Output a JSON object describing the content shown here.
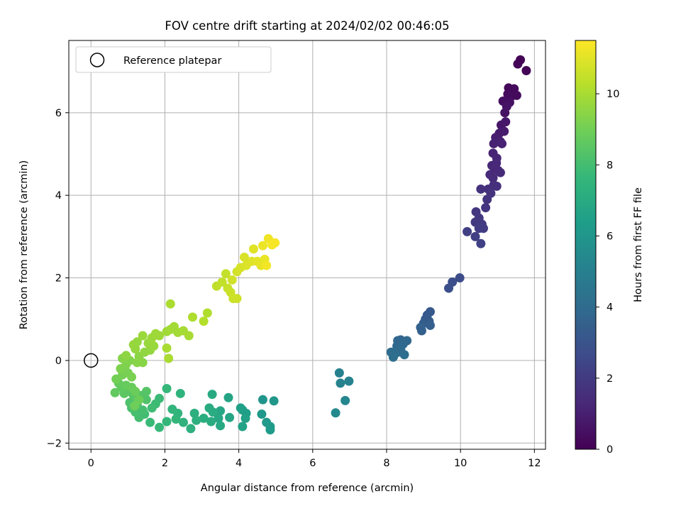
{
  "chart_data": {
    "type": "scatter",
    "title": "FOV centre drift starting at 2024/02/02 00:46:05",
    "xlabel": "Angular distance from reference (arcmin)",
    "ylabel": "Rotation from reference (arcmin)",
    "xlim": [
      -0.6,
      12.3
    ],
    "ylim": [
      -2.15,
      7.75
    ],
    "xticks": [
      0,
      2,
      4,
      6,
      8,
      10,
      12
    ],
    "yticks": [
      -2,
      0,
      2,
      4,
      6
    ],
    "xtick_labels": [
      "0",
      "2",
      "4",
      "6",
      "8",
      "10",
      "12"
    ],
    "ytick_labels": [
      "−2",
      "0",
      "2",
      "4",
      "6"
    ],
    "grid": true,
    "legend": {
      "placement": "top-left",
      "entries": [
        {
          "label": "Reference platepar",
          "marker": "open-circle"
        }
      ]
    },
    "reference_point": {
      "x": 0,
      "y": 0
    },
    "colorbar": {
      "label": "Hours from first FF file",
      "colormap": "viridis",
      "range": [
        0,
        11.5
      ],
      "ticks": [
        0,
        2,
        4,
        6,
        8,
        10
      ],
      "tick_labels": [
        "0",
        "2",
        "4",
        "6",
        "8",
        "10"
      ]
    },
    "colormap_stops": [
      "#440154",
      "#482878",
      "#3e4989",
      "#31688e",
      "#26828e",
      "#1f9e89",
      "#35b779",
      "#6ece58",
      "#b5de2b",
      "#fde725"
    ],
    "points": [
      {
        "x": 11.62,
        "y": 7.28,
        "t": 0.05
      },
      {
        "x": 11.55,
        "y": 7.18,
        "t": 0.1
      },
      {
        "x": 11.78,
        "y": 7.02,
        "t": 0.12
      },
      {
        "x": 11.3,
        "y": 6.6,
        "t": 0.2
      },
      {
        "x": 11.45,
        "y": 6.58,
        "t": 0.25
      },
      {
        "x": 11.28,
        "y": 6.45,
        "t": 0.3
      },
      {
        "x": 11.38,
        "y": 6.4,
        "t": 0.35
      },
      {
        "x": 11.52,
        "y": 6.42,
        "t": 0.3
      },
      {
        "x": 11.15,
        "y": 6.28,
        "t": 0.45
      },
      {
        "x": 11.33,
        "y": 6.25,
        "t": 0.5
      },
      {
        "x": 11.2,
        "y": 6.0,
        "t": 0.55
      },
      {
        "x": 11.25,
        "y": 6.15,
        "t": 0.6
      },
      {
        "x": 11.1,
        "y": 5.7,
        "t": 0.7
      },
      {
        "x": 11.22,
        "y": 5.78,
        "t": 0.75
      },
      {
        "x": 11.05,
        "y": 5.5,
        "t": 0.85
      },
      {
        "x": 11.18,
        "y": 5.55,
        "t": 0.9
      },
      {
        "x": 10.95,
        "y": 5.4,
        "t": 0.95
      },
      {
        "x": 11.08,
        "y": 5.3,
        "t": 1.0
      },
      {
        "x": 10.9,
        "y": 5.25,
        "t": 1.05
      },
      {
        "x": 11.12,
        "y": 5.25,
        "t": 1.1
      },
      {
        "x": 10.88,
        "y": 5.02,
        "t": 1.15
      },
      {
        "x": 10.98,
        "y": 4.9,
        "t": 1.2
      },
      {
        "x": 10.85,
        "y": 4.72,
        "t": 1.25
      },
      {
        "x": 10.92,
        "y": 4.65,
        "t": 1.3
      },
      {
        "x": 11.02,
        "y": 4.6,
        "t": 1.32
      },
      {
        "x": 10.8,
        "y": 4.5,
        "t": 1.35
      },
      {
        "x": 10.97,
        "y": 4.78,
        "t": 1.28
      },
      {
        "x": 11.08,
        "y": 4.55,
        "t": 1.4
      },
      {
        "x": 10.88,
        "y": 4.42,
        "t": 1.45
      },
      {
        "x": 10.9,
        "y": 4.25,
        "t": 1.5
      },
      {
        "x": 10.98,
        "y": 4.22,
        "t": 1.55
      },
      {
        "x": 10.75,
        "y": 4.15,
        "t": 1.6
      },
      {
        "x": 10.55,
        "y": 4.15,
        "t": 1.65
      },
      {
        "x": 10.82,
        "y": 4.05,
        "t": 1.7
      },
      {
        "x": 10.72,
        "y": 3.9,
        "t": 1.75
      },
      {
        "x": 10.68,
        "y": 3.7,
        "t": 1.8
      },
      {
        "x": 10.42,
        "y": 3.6,
        "t": 1.85
      },
      {
        "x": 10.5,
        "y": 3.45,
        "t": 1.9
      },
      {
        "x": 10.4,
        "y": 3.35,
        "t": 1.95
      },
      {
        "x": 10.58,
        "y": 3.3,
        "t": 2.0
      },
      {
        "x": 10.62,
        "y": 3.2,
        "t": 2.05
      },
      {
        "x": 10.5,
        "y": 3.2,
        "t": 2.1
      },
      {
        "x": 10.18,
        "y": 3.12,
        "t": 2.15
      },
      {
        "x": 10.4,
        "y": 3.0,
        "t": 2.2
      },
      {
        "x": 10.55,
        "y": 2.83,
        "t": 2.25
      },
      {
        "x": 9.98,
        "y": 2.0,
        "t": 2.7
      },
      {
        "x": 9.78,
        "y": 1.9,
        "t": 2.8
      },
      {
        "x": 9.68,
        "y": 1.75,
        "t": 2.85
      },
      {
        "x": 9.18,
        "y": 1.18,
        "t": 3.2
      },
      {
        "x": 9.1,
        "y": 1.1,
        "t": 3.25
      },
      {
        "x": 9.05,
        "y": 1.0,
        "t": 3.3
      },
      {
        "x": 9.15,
        "y": 0.95,
        "t": 3.35
      },
      {
        "x": 9.0,
        "y": 0.9,
        "t": 3.4
      },
      {
        "x": 9.18,
        "y": 0.85,
        "t": 3.45
      },
      {
        "x": 8.95,
        "y": 0.72,
        "t": 3.5
      },
      {
        "x": 8.92,
        "y": 0.8,
        "t": 3.55
      },
      {
        "x": 8.38,
        "y": 0.5,
        "t": 3.75
      },
      {
        "x": 8.3,
        "y": 0.48,
        "t": 3.8
      },
      {
        "x": 8.55,
        "y": 0.48,
        "t": 3.82
      },
      {
        "x": 8.45,
        "y": 0.4,
        "t": 3.85
      },
      {
        "x": 8.28,
        "y": 0.35,
        "t": 3.9
      },
      {
        "x": 8.38,
        "y": 0.28,
        "t": 3.95
      },
      {
        "x": 8.3,
        "y": 0.2,
        "t": 4.0
      },
      {
        "x": 8.12,
        "y": 0.2,
        "t": 4.05
      },
      {
        "x": 8.22,
        "y": 0.15,
        "t": 4.1
      },
      {
        "x": 8.48,
        "y": 0.14,
        "t": 4.15
      },
      {
        "x": 8.18,
        "y": 0.08,
        "t": 4.2
      },
      {
        "x": 6.72,
        "y": -0.3,
        "t": 5.0
      },
      {
        "x": 6.98,
        "y": -0.5,
        "t": 5.1
      },
      {
        "x": 6.75,
        "y": -0.55,
        "t": 5.15
      },
      {
        "x": 6.88,
        "y": -0.97,
        "t": 5.3
      },
      {
        "x": 6.62,
        "y": -1.27,
        "t": 5.45
      },
      {
        "x": 4.65,
        "y": -0.95,
        "t": 6.0
      },
      {
        "x": 4.95,
        "y": -0.98,
        "t": 6.05
      },
      {
        "x": 4.62,
        "y": -1.3,
        "t": 6.15
      },
      {
        "x": 4.75,
        "y": -1.5,
        "t": 6.2
      },
      {
        "x": 4.85,
        "y": -1.6,
        "t": 6.25
      },
      {
        "x": 4.85,
        "y": -1.68,
        "t": 6.3
      },
      {
        "x": 4.1,
        "y": -1.2,
        "t": 6.4
      },
      {
        "x": 4.2,
        "y": -1.28,
        "t": 6.45
      },
      {
        "x": 4.05,
        "y": -1.15,
        "t": 6.5
      },
      {
        "x": 4.18,
        "y": -1.4,
        "t": 6.55
      },
      {
        "x": 4.1,
        "y": -1.6,
        "t": 6.6
      },
      {
        "x": 3.72,
        "y": -0.9,
        "t": 6.7
      },
      {
        "x": 3.75,
        "y": -1.38,
        "t": 6.75
      },
      {
        "x": 3.5,
        "y": -1.22,
        "t": 6.8
      },
      {
        "x": 3.45,
        "y": -1.4,
        "t": 6.85
      },
      {
        "x": 3.5,
        "y": -1.58,
        "t": 6.9
      },
      {
        "x": 3.28,
        "y": -0.82,
        "t": 6.95
      },
      {
        "x": 3.2,
        "y": -1.15,
        "t": 7.0
      },
      {
        "x": 3.3,
        "y": -1.25,
        "t": 7.05
      },
      {
        "x": 3.25,
        "y": -1.48,
        "t": 7.1
      },
      {
        "x": 3.05,
        "y": -1.4,
        "t": 7.15
      },
      {
        "x": 2.8,
        "y": -1.28,
        "t": 7.2
      },
      {
        "x": 2.85,
        "y": -1.45,
        "t": 7.25
      },
      {
        "x": 2.7,
        "y": -1.65,
        "t": 7.3
      },
      {
        "x": 2.5,
        "y": -1.5,
        "t": 7.35
      },
      {
        "x": 2.42,
        "y": -0.8,
        "t": 7.4
      },
      {
        "x": 2.35,
        "y": -1.28,
        "t": 7.45
      },
      {
        "x": 2.2,
        "y": -1.18,
        "t": 7.5
      },
      {
        "x": 2.3,
        "y": -1.42,
        "t": 7.55
      },
      {
        "x": 2.05,
        "y": -1.48,
        "t": 7.6
      },
      {
        "x": 2.05,
        "y": -0.68,
        "t": 7.65
      },
      {
        "x": 1.85,
        "y": -1.62,
        "t": 7.7
      },
      {
        "x": 1.6,
        "y": -1.5,
        "t": 7.75
      },
      {
        "x": 1.85,
        "y": -0.92,
        "t": 7.8
      },
      {
        "x": 1.75,
        "y": -1.05,
        "t": 7.85
      },
      {
        "x": 1.65,
        "y": -1.15,
        "t": 7.9
      },
      {
        "x": 1.45,
        "y": -1.3,
        "t": 7.95
      },
      {
        "x": 1.3,
        "y": -1.38,
        "t": 8.0
      },
      {
        "x": 1.4,
        "y": -1.2,
        "t": 8.05
      },
      {
        "x": 1.2,
        "y": -1.25,
        "t": 8.1
      },
      {
        "x": 1.1,
        "y": -1.15,
        "t": 8.15
      },
      {
        "x": 1.05,
        "y": -1.02,
        "t": 8.2
      },
      {
        "x": 1.25,
        "y": -1.05,
        "t": 8.25
      },
      {
        "x": 1.5,
        "y": -0.95,
        "t": 8.3
      },
      {
        "x": 1.35,
        "y": -0.85,
        "t": 8.35
      },
      {
        "x": 1.5,
        "y": -0.75,
        "t": 8.4
      },
      {
        "x": 1.15,
        "y": -0.85,
        "t": 8.45
      },
      {
        "x": 1.0,
        "y": -0.75,
        "t": 8.5
      },
      {
        "x": 0.9,
        "y": -0.8,
        "t": 8.55
      },
      {
        "x": 0.82,
        "y": -0.65,
        "t": 8.6
      },
      {
        "x": 0.65,
        "y": -0.78,
        "t": 8.65
      },
      {
        "x": 0.75,
        "y": -0.55,
        "t": 8.7
      },
      {
        "x": 0.95,
        "y": -0.6,
        "t": 8.75
      },
      {
        "x": 1.1,
        "y": -0.65,
        "t": 8.8
      },
      {
        "x": 1.2,
        "y": -0.75,
        "t": 8.85
      },
      {
        "x": 1.3,
        "y": -0.95,
        "t": 8.9
      },
      {
        "x": 1.18,
        "y": -1.1,
        "t": 8.95
      },
      {
        "x": 0.68,
        "y": -0.45,
        "t": 9.0
      },
      {
        "x": 0.85,
        "y": -0.35,
        "t": 9.05
      },
      {
        "x": 1.0,
        "y": -0.3,
        "t": 9.1
      },
      {
        "x": 1.1,
        "y": -0.4,
        "t": 9.15
      },
      {
        "x": 0.8,
        "y": -0.2,
        "t": 9.2
      },
      {
        "x": 0.95,
        "y": -0.1,
        "t": 9.25
      },
      {
        "x": 1.05,
        "y": 0.0,
        "t": 9.3
      },
      {
        "x": 0.85,
        "y": 0.05,
        "t": 9.35
      },
      {
        "x": 1.25,
        "y": -0.05,
        "t": 9.4
      },
      {
        "x": 1.4,
        "y": -0.05,
        "t": 9.42
      },
      {
        "x": 1.3,
        "y": 0.1,
        "t": 9.45
      },
      {
        "x": 0.95,
        "y": 0.12,
        "t": 9.5
      },
      {
        "x": 1.45,
        "y": 0.2,
        "t": 9.55
      },
      {
        "x": 1.6,
        "y": 0.25,
        "t": 9.6
      },
      {
        "x": 1.2,
        "y": 0.28,
        "t": 9.62
      },
      {
        "x": 1.25,
        "y": 0.45,
        "t": 9.65
      },
      {
        "x": 1.15,
        "y": 0.38,
        "t": 9.68
      },
      {
        "x": 1.55,
        "y": 0.42,
        "t": 9.7
      },
      {
        "x": 1.7,
        "y": 0.35,
        "t": 9.72
      },
      {
        "x": 1.4,
        "y": 0.6,
        "t": 9.75
      },
      {
        "x": 1.65,
        "y": 0.55,
        "t": 9.78
      },
      {
        "x": 1.85,
        "y": 0.6,
        "t": 9.8
      },
      {
        "x": 1.75,
        "y": 0.65,
        "t": 9.82
      },
      {
        "x": 2.05,
        "y": 0.7,
        "t": 9.85
      },
      {
        "x": 2.15,
        "y": 0.75,
        "t": 9.88
      },
      {
        "x": 2.25,
        "y": 0.82,
        "t": 9.9
      },
      {
        "x": 2.35,
        "y": 0.68,
        "t": 9.92
      },
      {
        "x": 2.5,
        "y": 0.72,
        "t": 9.95
      },
      {
        "x": 2.65,
        "y": 0.6,
        "t": 9.97
      },
      {
        "x": 2.05,
        "y": 0.3,
        "t": 10.0
      },
      {
        "x": 2.1,
        "y": 0.05,
        "t": 10.02
      },
      {
        "x": 2.15,
        "y": 1.37,
        "t": 10.05
      },
      {
        "x": 2.75,
        "y": 1.05,
        "t": 10.1
      },
      {
        "x": 3.15,
        "y": 1.15,
        "t": 10.15
      },
      {
        "x": 3.05,
        "y": 0.95,
        "t": 10.2
      },
      {
        "x": 3.4,
        "y": 1.8,
        "t": 10.4
      },
      {
        "x": 3.55,
        "y": 1.9,
        "t": 10.45
      },
      {
        "x": 3.65,
        "y": 2.1,
        "t": 10.5
      },
      {
        "x": 3.7,
        "y": 1.75,
        "t": 10.55
      },
      {
        "x": 3.85,
        "y": 1.5,
        "t": 10.6
      },
      {
        "x": 3.78,
        "y": 1.65,
        "t": 10.62
      },
      {
        "x": 3.95,
        "y": 1.5,
        "t": 10.65
      },
      {
        "x": 3.82,
        "y": 1.95,
        "t": 10.7
      },
      {
        "x": 3.95,
        "y": 2.15,
        "t": 10.75
      },
      {
        "x": 4.05,
        "y": 2.25,
        "t": 10.8
      },
      {
        "x": 4.15,
        "y": 2.5,
        "t": 10.85
      },
      {
        "x": 4.2,
        "y": 2.3,
        "t": 10.9
      },
      {
        "x": 4.35,
        "y": 2.4,
        "t": 10.95
      },
      {
        "x": 4.4,
        "y": 2.7,
        "t": 11.0
      },
      {
        "x": 4.5,
        "y": 2.4,
        "t": 11.05
      },
      {
        "x": 4.6,
        "y": 2.3,
        "t": 11.1
      },
      {
        "x": 4.7,
        "y": 2.45,
        "t": 11.15
      },
      {
        "x": 4.65,
        "y": 2.78,
        "t": 11.2
      },
      {
        "x": 4.8,
        "y": 2.95,
        "t": 11.25
      },
      {
        "x": 4.75,
        "y": 2.3,
        "t": 11.3
      },
      {
        "x": 4.9,
        "y": 2.8,
        "t": 11.35
      },
      {
        "x": 4.98,
        "y": 2.85,
        "t": 11.4
      }
    ]
  }
}
